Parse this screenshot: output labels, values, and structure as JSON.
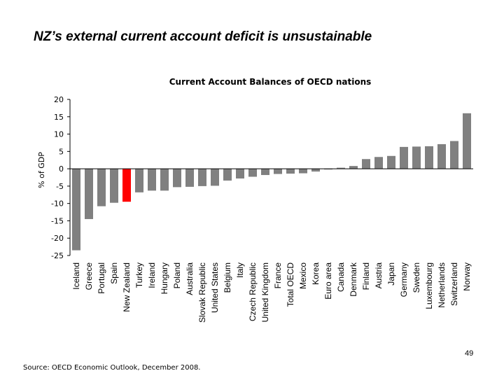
{
  "slide": {
    "title": "NZ’s external current account deficit is unsustainable",
    "page_number": "49",
    "source": "Source: OECD Economic Outlook, December 2008."
  },
  "chart_data": {
    "type": "bar",
    "title": "Current Account Balances of OECD nations",
    "xlabel": "",
    "ylabel": "% of GDP",
    "ylim": [
      -25,
      20
    ],
    "yticks": [
      20,
      15,
      10,
      5,
      0,
      -5,
      -10,
      -15,
      -20,
      -25
    ],
    "grid": false,
    "bar_color": "#808080",
    "highlight_color": "#ff0000",
    "highlight_category": "New Zealand",
    "categories": [
      "Iceland",
      "Greece",
      "Portugal",
      "Spain",
      "New Zealand",
      "Turkey",
      "Ireland",
      "Hungary",
      "Poland",
      "Australia",
      "Slovak Republic",
      "United States",
      "Belgium",
      "Italy",
      "Czech Republic",
      "United Kingdom",
      "France",
      "Total OECD",
      "Mexico",
      "Korea",
      "Euro area",
      "Canada",
      "Denmark",
      "Finland",
      "Austria",
      "Japan",
      "Germany",
      "Sweden",
      "Luxembourg",
      "Netherlands",
      "Switzerland",
      "Norway"
    ],
    "values": [
      -23.5,
      -14.5,
      -10.8,
      -9.8,
      -9.5,
      -6.8,
      -6.3,
      -6.3,
      -5.3,
      -5.2,
      -5.0,
      -4.9,
      -3.4,
      -2.8,
      -2.3,
      -1.8,
      -1.5,
      -1.4,
      -1.3,
      -0.8,
      -0.2,
      0.3,
      0.8,
      2.8,
      3.4,
      3.7,
      6.3,
      6.4,
      6.5,
      7.1,
      8.0,
      16.0
    ]
  }
}
